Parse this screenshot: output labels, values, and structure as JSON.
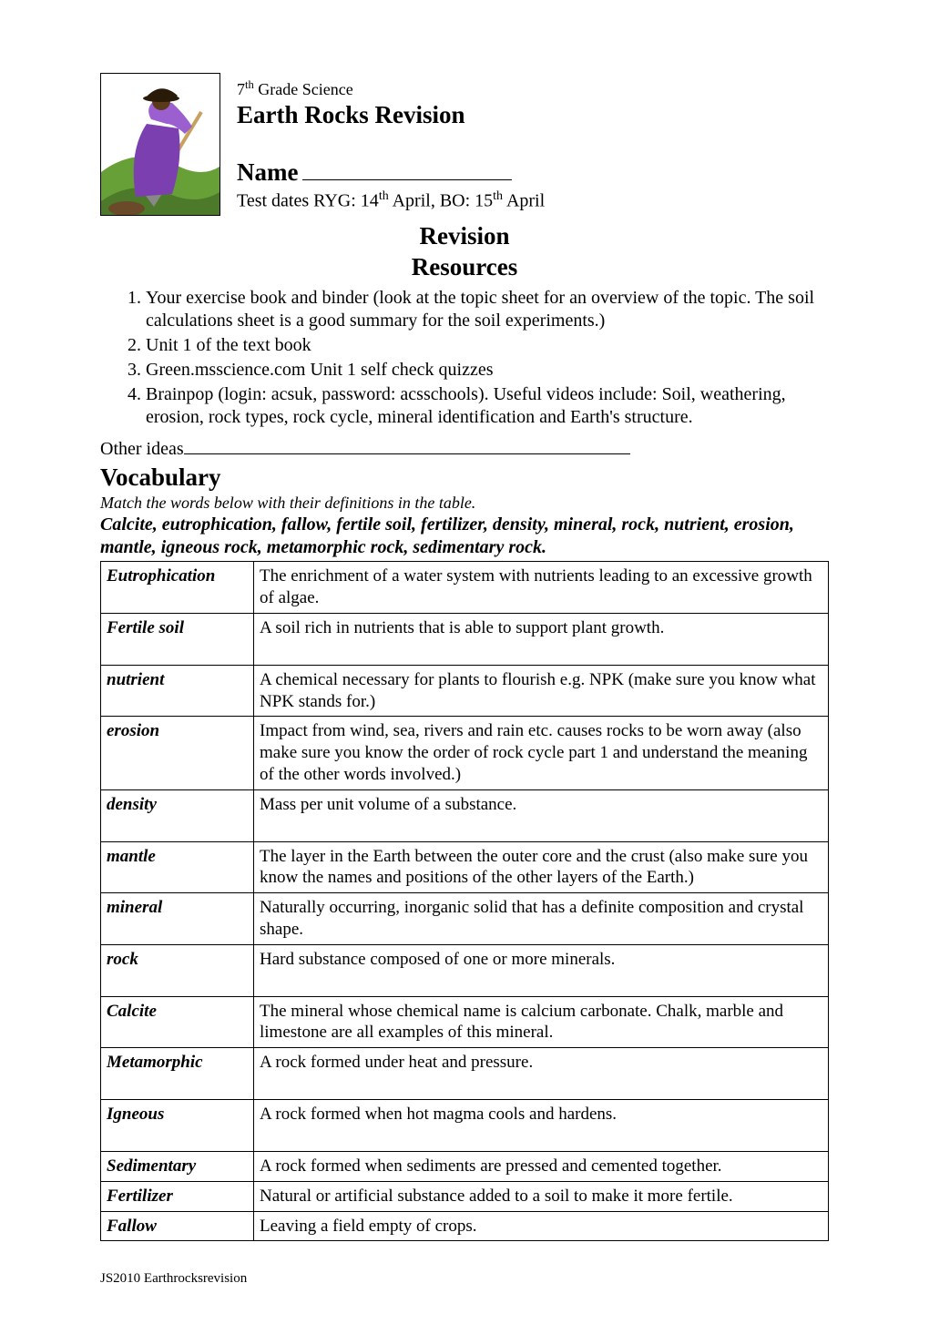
{
  "header": {
    "grade": "7",
    "grade_suffix": "th",
    "grade_after": " Grade Science",
    "title": "Earth Rocks Revision",
    "name_label": "Name",
    "dates_prefix": "Test dates RYG: 14",
    "dates_sup1": "th",
    "dates_mid": " April, BO: 15",
    "dates_sup2": "th",
    "dates_end": " April",
    "revision": "Revision",
    "resources": "Resources"
  },
  "clip": {
    "bg": "#ffffff",
    "border": "#000000",
    "hill_back": "#68a038",
    "hill_front": "#4c7a2a",
    "cloak": "#7b3fb0",
    "upper": "#9b5fd0",
    "face": "#5a3a1a",
    "hat": "#2a1a08",
    "shovel_handle": "#c8a060",
    "shovel_blade": "#888888",
    "dirt": "#6b4a2a"
  },
  "resources_list": [
    "Your exercise book and binder (look at the topic sheet for an overview of the topic.  The soil calculations sheet is a good summary for the soil experiments.)",
    "Unit 1 of the text book",
    "Green.msscience.com Unit 1 self check quizzes",
    "Brainpop (login: acsuk, password: acsschools).  Useful videos include: Soil, weathering, erosion, rock types, rock cycle, mineral identification and Earth's structure."
  ],
  "other_ideas_label": "Other ideas",
  "vocab": {
    "heading": "Vocabulary",
    "instruction": "Match the words below with their definitions in the table.",
    "word_list": "Calcite, eutrophication, fallow, fertile soil, fertilizer, density, mineral, rock, nutrient, erosion, mantle, igneous rock, metamorphic rock, sedimentary rock.",
    "rows": [
      {
        "term": "Eutrophication",
        "def": "The enrichment of a water system with nutrients leading to an excessive growth of algae.",
        "tall": true
      },
      {
        "term": "Fertile soil",
        "def": " A soil rich in nutrients that is able to support plant growth.",
        "tall": true
      },
      {
        "term": "nutrient",
        "def": "A chemical necessary for plants to flourish e.g. NPK (make sure you know what NPK stands for.)",
        "tall": false
      },
      {
        "term": "erosion",
        "def": "Impact from wind, sea, rivers and rain etc. causes rocks to be worn away (also make sure you know the order of rock cycle part 1 and understand the meaning of the other words involved.)",
        "tall": false
      },
      {
        "term": "density",
        "def": "Mass per unit volume of a substance.",
        "tall": true
      },
      {
        "term": "mantle",
        "def": "The layer in the Earth between the outer core and the crust (also make sure you know the names and positions of the other layers of the Earth.)",
        "tall": false
      },
      {
        "term": "mineral",
        "def": "Naturally occurring, inorganic solid that has a definite composition and crystal shape.",
        "tall": false
      },
      {
        "term": "rock",
        "def": "Hard substance composed of one or more minerals.",
        "tall": true
      },
      {
        "term": "Calcite",
        "def": "The mineral whose chemical name is calcium carbonate.  Chalk, marble and limestone are all examples of this mineral.",
        "tall": false
      },
      {
        "term": "Metamorphic",
        "def": "A rock formed under heat and pressure.",
        "tall": true
      },
      {
        "term": "Igneous",
        "def": "A rock formed when hot magma cools and hardens.",
        "tall": true
      },
      {
        "term": "Sedimentary",
        "def": "A rock formed when sediments are pressed and cemented together.",
        "tall": false
      },
      {
        "term": "Fertilizer",
        "def": "Natural or artificial substance added to a soil to make it more fertile.",
        "tall": false
      },
      {
        "term": "Fallow",
        "def": "Leaving a field empty of crops.",
        "tall": false
      }
    ]
  },
  "footer": "JS2010 Earthrocksrevision"
}
